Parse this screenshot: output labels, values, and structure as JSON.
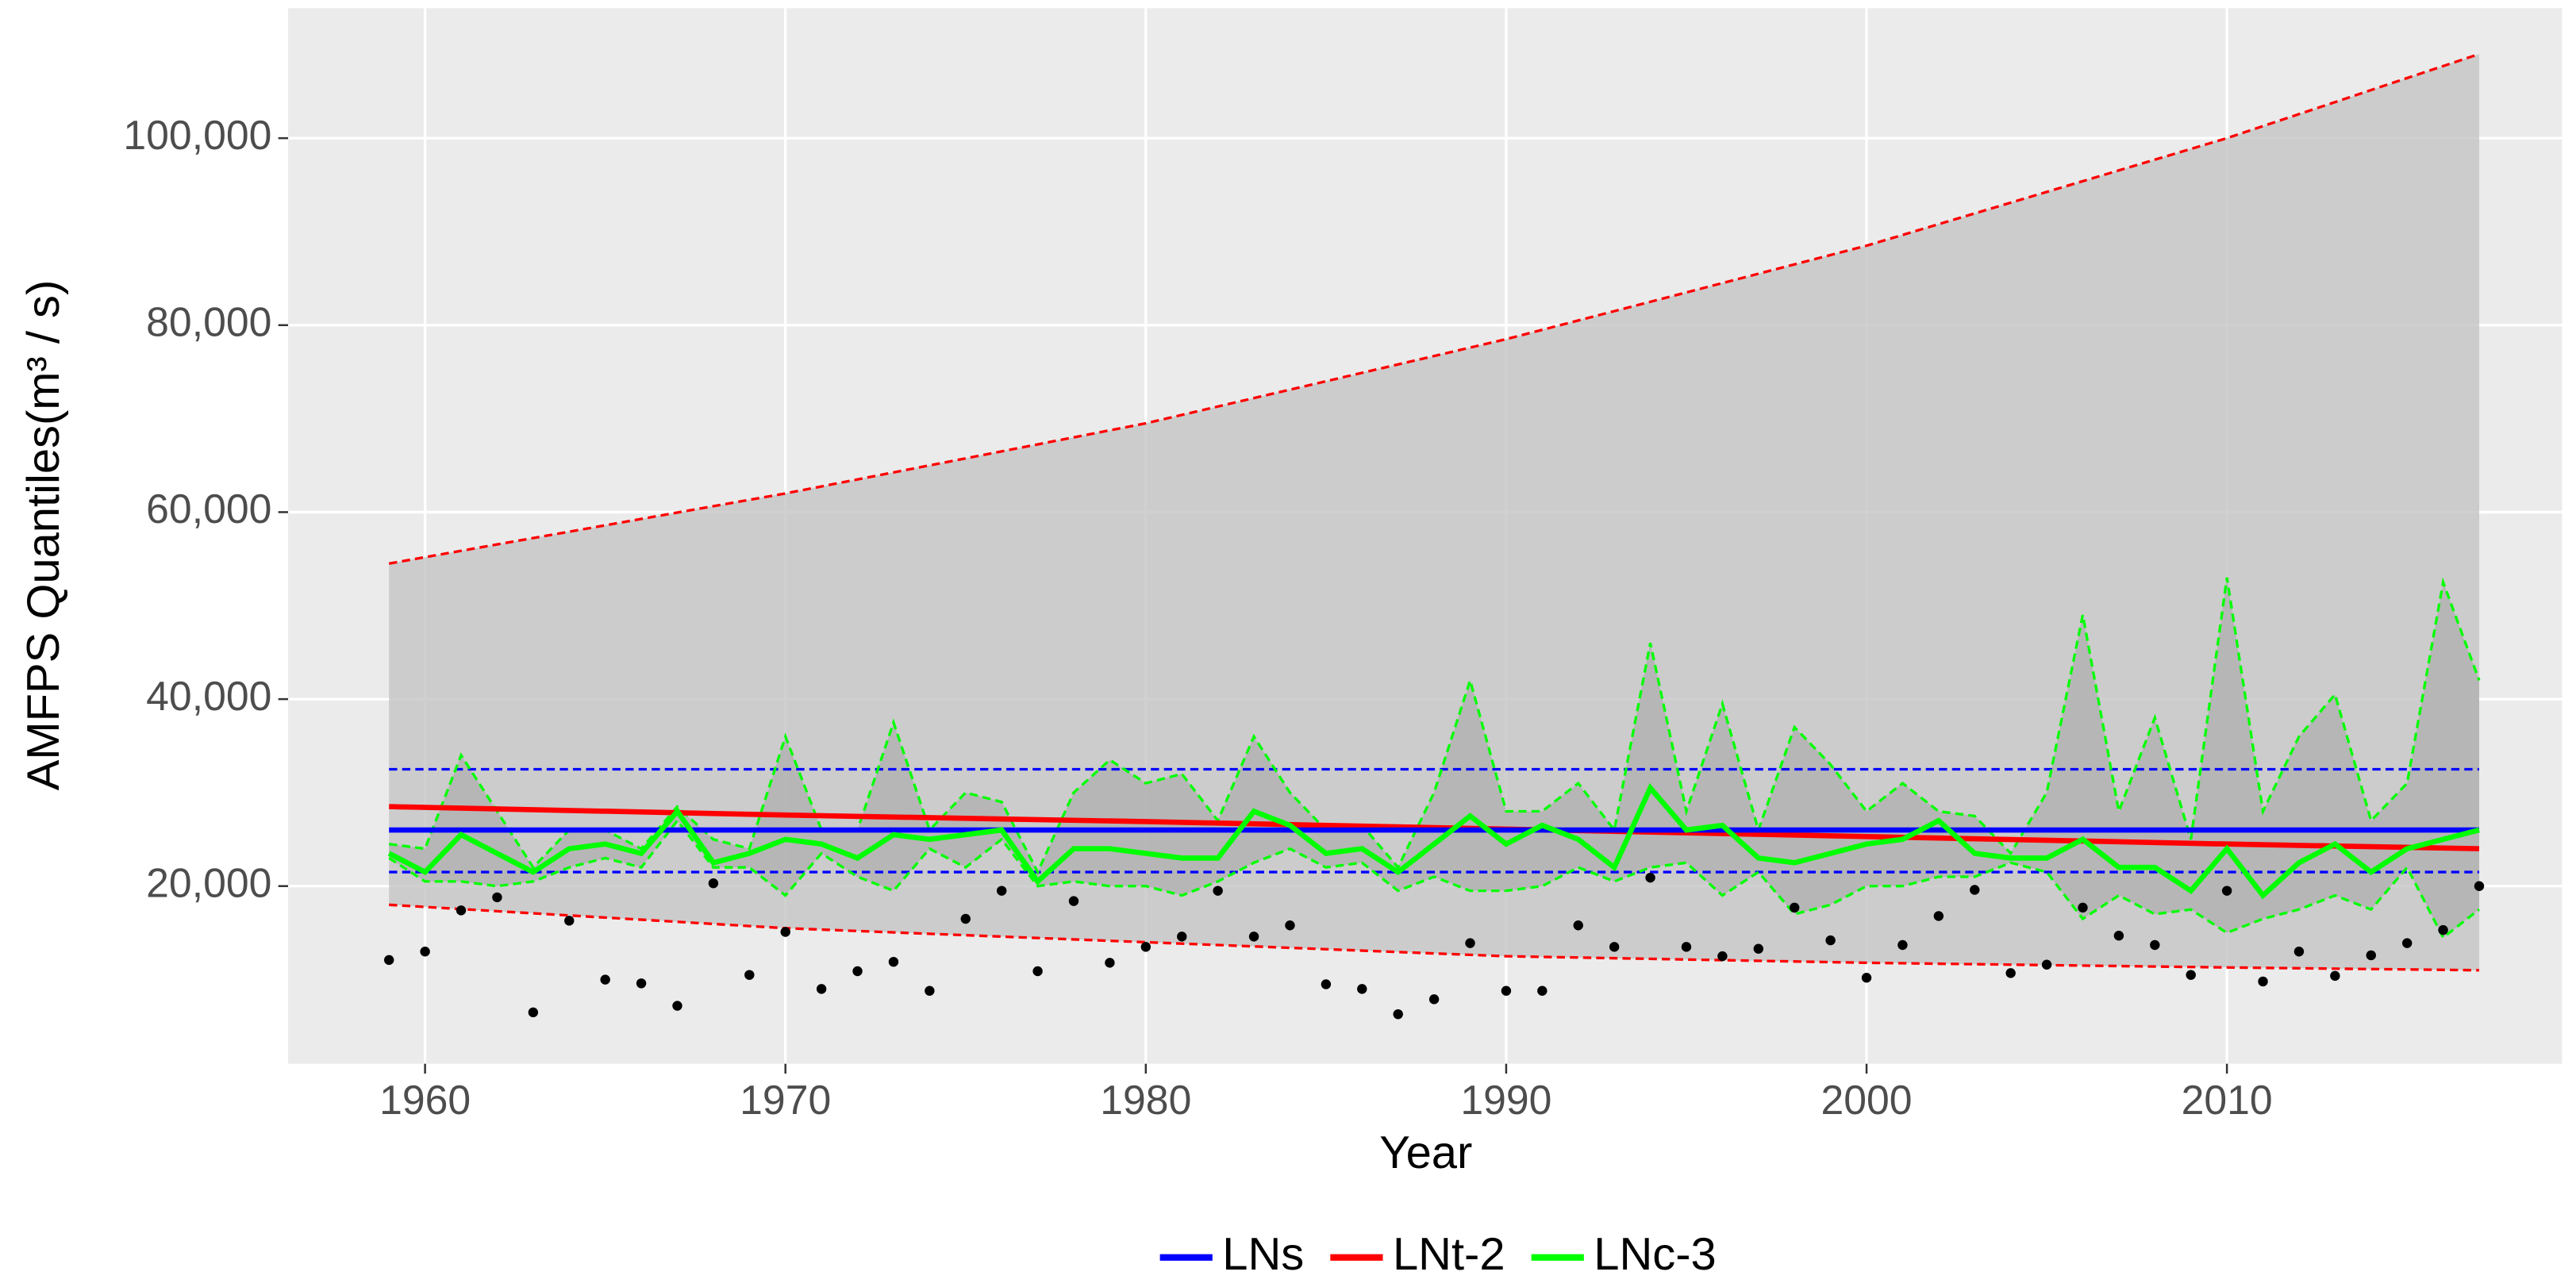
{
  "chart_data": {
    "type": "line",
    "x_label": "Year",
    "y_label": "AMFPS Quantiles(m³ / s)",
    "xlim": [
      1956.2,
      2019.3
    ],
    "ylim": [
      1000,
      113900
    ],
    "xticks": [
      1960,
      1970,
      1980,
      1990,
      2000,
      2010
    ],
    "yticks": [
      {
        "value": 20000,
        "label": "20,000"
      },
      {
        "value": 40000,
        "label": "40,000"
      },
      {
        "value": 60000,
        "label": "60,000"
      },
      {
        "value": 80000,
        "label": "80,000"
      },
      {
        "value": 100000,
        "label": "100,000"
      }
    ],
    "grid": true,
    "legend_position": "bottom",
    "x": [
      1959,
      1960,
      1961,
      1962,
      1963,
      1964,
      1965,
      1966,
      1967,
      1968,
      1969,
      1970,
      1971,
      1972,
      1973,
      1974,
      1975,
      1976,
      1977,
      1978,
      1979,
      1980,
      1981,
      1982,
      1983,
      1984,
      1985,
      1986,
      1987,
      1988,
      1989,
      1990,
      1991,
      1992,
      1993,
      1994,
      1995,
      1996,
      1997,
      1998,
      1999,
      2000,
      2001,
      2002,
      2003,
      2004,
      2005,
      2006,
      2007,
      2008,
      2009,
      2010,
      2011,
      2012,
      2013,
      2014,
      2015,
      2016,
      2017
    ],
    "points": {
      "color": "#000000",
      "values": [
        12100,
        13000,
        17400,
        18800,
        6500,
        16300,
        10000,
        9600,
        7200,
        20300,
        10500,
        15100,
        9000,
        10900,
        11900,
        8800,
        16500,
        19500,
        10900,
        18400,
        11800,
        13500,
        14600,
        19500,
        14600,
        15800,
        9500,
        9000,
        6300,
        7900,
        13900,
        8800,
        8800,
        15800,
        13500,
        20900,
        13500,
        12500,
        13300,
        17700,
        14200,
        10200,
        13700,
        16800,
        19600,
        10700,
        11600,
        17700,
        14700,
        13700,
        10500,
        19500,
        9800,
        13000,
        10400,
        12600,
        13900,
        15300,
        20000
      ]
    },
    "series": [
      {
        "name": "LNt-2",
        "color": "#ff0000",
        "fill": "#c4c4c4",
        "x": [
          1959,
          1970,
          1980,
          1990,
          2000,
          2010,
          2017
        ],
        "values": [
          28500,
          27600,
          26900,
          26100,
          25300,
          24500,
          24000
        ],
        "lower": [
          18000,
          15500,
          14000,
          12500,
          11800,
          11300,
          11000
        ],
        "upper": [
          54500,
          62000,
          69500,
          78500,
          88500,
          100000,
          109000
        ]
      },
      {
        "name": "LNs",
        "color": "#0000ff",
        "x": [
          1959,
          2017
        ],
        "values": [
          26000,
          26000
        ],
        "lower": [
          21500,
          21500
        ],
        "upper": [
          32500,
          32500
        ]
      },
      {
        "name": "LNc-3",
        "color": "#00ff00",
        "fill": "#b0b0b0",
        "x": [
          1959,
          1960,
          1961,
          1962,
          1963,
          1964,
          1965,
          1966,
          1967,
          1968,
          1969,
          1970,
          1971,
          1972,
          1973,
          1974,
          1975,
          1976,
          1977,
          1978,
          1979,
          1980,
          1981,
          1982,
          1983,
          1984,
          1985,
          1986,
          1987,
          1988,
          1989,
          1990,
          1991,
          1992,
          1993,
          1994,
          1995,
          1996,
          1997,
          1998,
          1999,
          2000,
          2001,
          2002,
          2003,
          2004,
          2005,
          2006,
          2007,
          2008,
          2009,
          2010,
          2011,
          2012,
          2013,
          2014,
          2015,
          2016,
          2017
        ],
        "values": [
          23500,
          21500,
          25500,
          23500,
          21500,
          24000,
          24500,
          23500,
          28000,
          22500,
          23500,
          25000,
          24500,
          23000,
          25500,
          25000,
          25500,
          26000,
          20500,
          24000,
          24000,
          23500,
          23000,
          23000,
          28000,
          26500,
          23500,
          24000,
          21500,
          24500,
          27500,
          24500,
          26500,
          25000,
          22000,
          30500,
          26000,
          26500,
          23000,
          22500,
          23500,
          24500,
          25000,
          27000,
          23500,
          23000,
          23000,
          25000,
          22000,
          22000,
          19500,
          24000,
          19000,
          22500,
          24500,
          21500,
          24000,
          25000,
          26000
        ],
        "lower": [
          23000,
          20500,
          20500,
          20000,
          20500,
          22000,
          23000,
          22000,
          27000,
          22000,
          22000,
          19000,
          23500,
          21000,
          19500,
          24000,
          22000,
          25000,
          20000,
          20500,
          20000,
          20000,
          19000,
          20500,
          22500,
          24000,
          22000,
          22500,
          19500,
          21000,
          19500,
          19500,
          20000,
          22000,
          20500,
          22000,
          22500,
          19000,
          21500,
          17000,
          18000,
          20000,
          20000,
          21000,
          21000,
          22500,
          21500,
          16500,
          19000,
          17000,
          17500,
          15000,
          16500,
          17500,
          19000,
          17500,
          22000,
          14500,
          17500
        ],
        "upper": [
          24500,
          24000,
          34000,
          28000,
          22000,
          26000,
          26000,
          24000,
          28500,
          25000,
          24000,
          36000,
          26000,
          26000,
          37500,
          26000,
          30000,
          29000,
          21500,
          30000,
          33500,
          31000,
          32000,
          27000,
          36000,
          30000,
          26000,
          26500,
          22000,
          30000,
          42000,
          28000,
          28000,
          31000,
          26000,
          46000,
          28000,
          39500,
          26000,
          37000,
          33000,
          28000,
          31000,
          28000,
          27500,
          23500,
          30000,
          49000,
          28000,
          38000,
          25000,
          53000,
          28000,
          36000,
          40500,
          27000,
          31000,
          52500,
          42000
        ]
      }
    ],
    "legend_order": [
      1,
      0,
      2
    ]
  }
}
